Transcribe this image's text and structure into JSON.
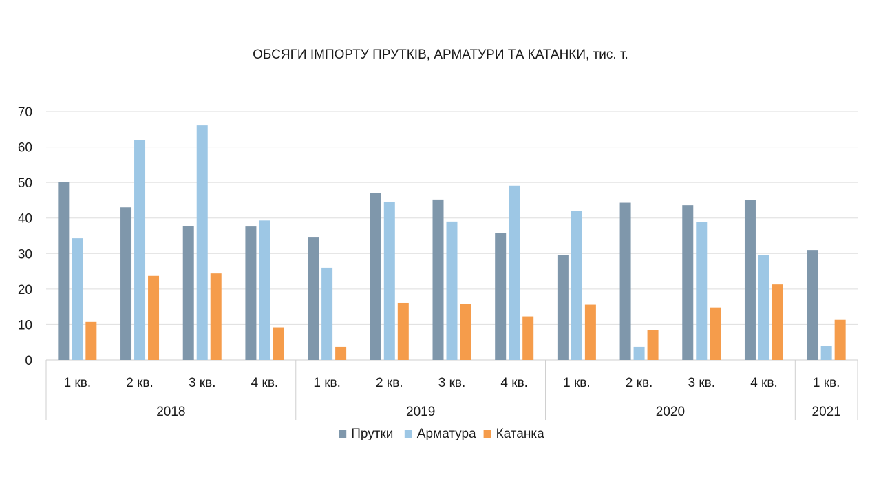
{
  "chart_data": {
    "type": "bar",
    "title": "ОБСЯГИ ІМПОРТУ ПРУТКІВ, АРМАТУРИ ТА КАТАНКИ, тис. т.",
    "xlabel": "",
    "ylabel": "",
    "ylim": [
      0,
      70
    ],
    "yticks": [
      0,
      10,
      20,
      30,
      40,
      50,
      60,
      70
    ],
    "grid": true,
    "legend_position": "bottom",
    "categories": [
      {
        "quarter": "1 кв.",
        "year": "2018"
      },
      {
        "quarter": "2 кв.",
        "year": "2018"
      },
      {
        "quarter": "3 кв.",
        "year": "2018"
      },
      {
        "quarter": "4 кв.",
        "year": "2018"
      },
      {
        "quarter": "1 кв.",
        "year": "2019"
      },
      {
        "quarter": "2 кв.",
        "year": "2019"
      },
      {
        "quarter": "3 кв.",
        "year": "2019"
      },
      {
        "quarter": "4 кв.",
        "year": "2019"
      },
      {
        "quarter": "1 кв.",
        "year": "2020"
      },
      {
        "quarter": "2 кв.",
        "year": "2020"
      },
      {
        "quarter": "3 кв.",
        "year": "2020"
      },
      {
        "quarter": "4 кв.",
        "year": "2020"
      },
      {
        "quarter": "1 кв.",
        "year": "2021"
      }
    ],
    "year_groups": [
      {
        "label": "2018",
        "count": 4
      },
      {
        "label": "2019",
        "count": 4
      },
      {
        "label": "2020",
        "count": 4
      },
      {
        "label": "2021",
        "count": 1
      }
    ],
    "series": [
      {
        "name": "Прутки",
        "color": "#7f97ab",
        "values": [
          50.2,
          43.0,
          37.8,
          37.6,
          34.5,
          47.1,
          45.2,
          35.7,
          29.5,
          44.3,
          43.6,
          45.0,
          31.0
        ]
      },
      {
        "name": "Арматура",
        "color": "#9dc7e5",
        "values": [
          34.3,
          61.9,
          66.1,
          39.3,
          26.0,
          44.6,
          39.0,
          49.1,
          41.9,
          3.7,
          38.8,
          29.5,
          3.9
        ]
      },
      {
        "name": "Катанка",
        "color": "#f59c4b",
        "values": [
          10.7,
          23.7,
          24.4,
          9.2,
          3.7,
          16.1,
          15.8,
          12.3,
          15.6,
          8.5,
          14.8,
          21.3,
          11.3
        ]
      }
    ]
  }
}
